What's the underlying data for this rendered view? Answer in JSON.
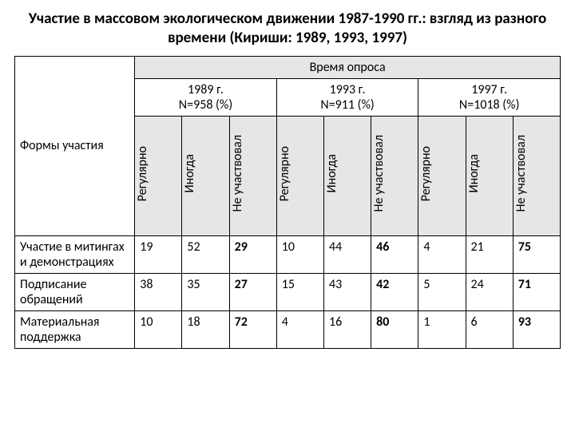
{
  "title": "Участие в массовом экологическом движении 1987-1990 гг.: взгляд из разного времени (Кириши: 1989, 1993, 1997)",
  "header": {
    "forms": "Формы участия",
    "survey_time": "Время опроса",
    "years": [
      "1989 г.\nN=958 (%)",
      "1993 г.\nN=911 (%)",
      "1997 г.\nN=1018 (%)"
    ],
    "subcols": [
      "Регулярно",
      "Иногда",
      "Не участвовал"
    ]
  },
  "rows": [
    {
      "label": "Участие в митингах и демонстрациях",
      "v": [
        "19",
        "52",
        "29",
        "10",
        "44",
        "46",
        "4",
        "21",
        "75"
      ]
    },
    {
      "label": "Подписание обращений",
      "v": [
        "38",
        "35",
        "27",
        "15",
        "43",
        "42",
        "5",
        "24",
        "71"
      ]
    },
    {
      "label": "Материальная поддержка",
      "v": [
        "10",
        "18",
        "72",
        "4",
        "16",
        "80",
        "1",
        "6",
        "93"
      ]
    }
  ],
  "style": {
    "bg": "#ffffff",
    "gray": "#e6e6e6",
    "border": "#000000",
    "font": "Calibri",
    "title_fontsize": 19,
    "cell_fontsize": 16
  }
}
